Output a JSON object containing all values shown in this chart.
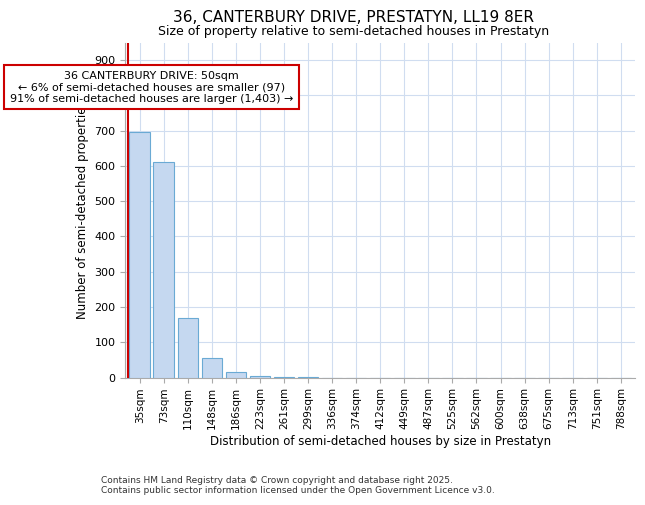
{
  "title_line1": "36, CANTERBURY DRIVE, PRESTATYN, LL19 8ER",
  "title_line2": "Size of property relative to semi-detached houses in Prestatyn",
  "xlabel": "Distribution of semi-detached houses by size in Prestatyn",
  "ylabel": "Number of semi-detached properties",
  "bar_labels": [
    "35sqm",
    "73sqm",
    "110sqm",
    "148sqm",
    "186sqm",
    "223sqm",
    "261sqm",
    "299sqm",
    "336sqm",
    "374sqm",
    "412sqm",
    "449sqm",
    "487sqm",
    "525sqm",
    "562sqm",
    "600sqm",
    "638sqm",
    "675sqm",
    "713sqm",
    "751sqm",
    "788sqm"
  ],
  "bar_values": [
    695,
    610,
    170,
    55,
    15,
    4,
    2,
    1,
    0,
    0,
    0,
    0,
    0,
    0,
    0,
    0,
    0,
    0,
    0,
    0,
    0
  ],
  "bar_color": "#c5d8f0",
  "bar_edge_color": "#6aaad4",
  "marker_color": "#cc0000",
  "annotation_title": "36 CANTERBURY DRIVE: 50sqm",
  "annotation_line2": "← 6% of semi-detached houses are smaller (97)",
  "annotation_line3": "91% of semi-detached houses are larger (1,403) →",
  "annotation_box_color": "#cc0000",
  "ylim": [
    0,
    950
  ],
  "yticks": [
    0,
    100,
    200,
    300,
    400,
    500,
    600,
    700,
    800,
    900
  ],
  "footer_line1": "Contains HM Land Registry data © Crown copyright and database right 2025.",
  "footer_line2": "Contains public sector information licensed under the Open Government Licence v3.0.",
  "background_color": "#ffffff",
  "grid_color": "#d0ddf0"
}
